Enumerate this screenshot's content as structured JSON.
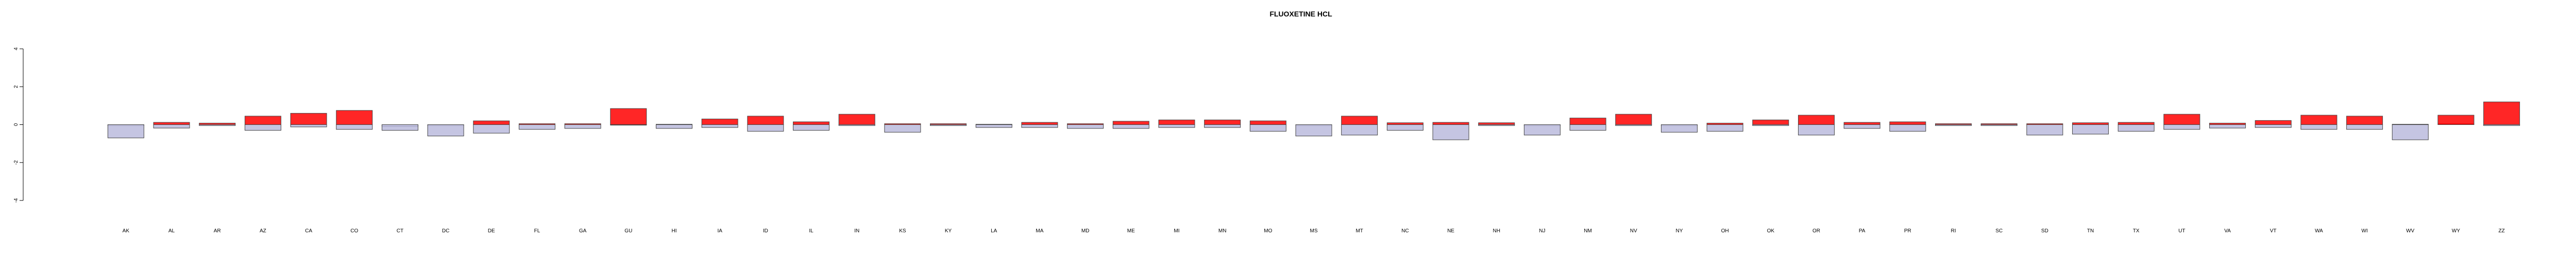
{
  "chart_data": {
    "type": "bar",
    "title": "FLUOXETINE HCL",
    "xlabel": "",
    "ylabel": "",
    "ylim": [
      -4,
      4
    ],
    "yticks": [
      -4,
      -2,
      0,
      2,
      4
    ],
    "grid": false,
    "legend": "none",
    "colors": {
      "positive": "#ff0000",
      "negative": "#bbbbdd",
      "border": "#444444"
    },
    "categories": [
      "AK",
      "AL",
      "AR",
      "AZ",
      "CA",
      "CO",
      "CT",
      "DC",
      "DE",
      "FL",
      "GA",
      "GU",
      "HI",
      "IA",
      "ID",
      "IL",
      "IN",
      "KS",
      "KY",
      "LA",
      "MA",
      "MD",
      "ME",
      "MI",
      "MN",
      "MO",
      "MS",
      "MT",
      "NC",
      "NE",
      "NH",
      "NJ",
      "NM",
      "NV",
      "NY",
      "OH",
      "OK",
      "OR",
      "PA",
      "PR",
      "RI",
      "SC",
      "SD",
      "TN",
      "TX",
      "UT",
      "VA",
      "VT",
      "WA",
      "WI",
      "WV",
      "WY",
      "ZZ"
    ],
    "series": [
      {
        "values": [
          -0.05,
          0.12,
          0.08,
          0.45,
          0.6,
          0.75,
          -0.1,
          -0.05,
          0.2,
          0.05,
          0.05,
          -0.02,
          0.02,
          0.3,
          0.45,
          0.15,
          0.55,
          0.05,
          0.05,
          0.02,
          0.12,
          0.05,
          0.18,
          0.25,
          0.25,
          0.2,
          -0.05,
          0.45,
          0.1,
          0.12,
          0.1,
          -0.05,
          0.35,
          0.55,
          -0.05,
          0.08,
          0.25,
          0.5,
          0.12,
          0.15,
          0.05,
          0.05,
          0.05,
          0.1,
          0.12,
          0.55,
          0.08,
          0.22,
          0.5,
          0.45,
          0.02,
          0.05,
          1.2
        ]
      },
      {
        "values": [
          -0.7,
          -0.18,
          -0.05,
          -0.3,
          -0.12,
          -0.25,
          -0.3,
          -0.6,
          -0.45,
          -0.25,
          -0.2,
          0.85,
          -0.2,
          -0.15,
          -0.35,
          -0.3,
          -0.05,
          -0.4,
          -0.05,
          -0.15,
          -0.15,
          -0.2,
          -0.2,
          -0.15,
          -0.15,
          -0.35,
          -0.6,
          -0.55,
          -0.3,
          -0.8,
          -0.05,
          -0.55,
          -0.3,
          -0.05,
          -0.4,
          -0.35,
          -0.05,
          -0.55,
          -0.2,
          -0.35,
          -0.05,
          -0.05,
          -0.55,
          -0.5,
          -0.35,
          -0.25,
          -0.18,
          -0.15,
          -0.25,
          -0.25,
          -0.8,
          0.5,
          -0.05
        ]
      }
    ]
  }
}
